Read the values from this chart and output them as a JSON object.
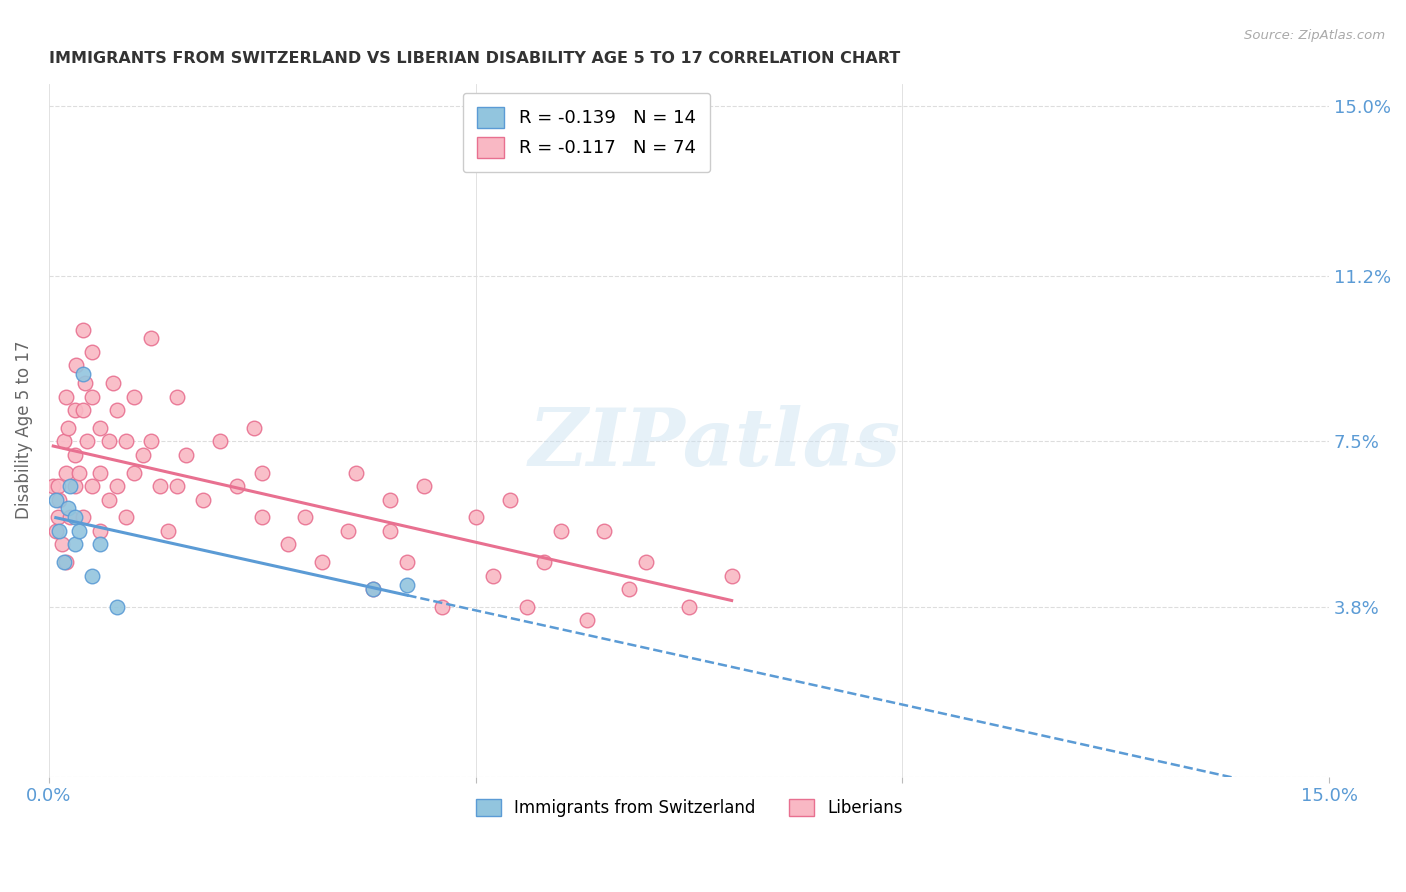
{
  "title": "IMMIGRANTS FROM SWITZERLAND VS LIBERIAN DISABILITY AGE 5 TO 17 CORRELATION CHART",
  "source": "Source: ZipAtlas.com",
  "ylabel": "Disability Age 5 to 17",
  "y_ticks": [
    0.0,
    0.038,
    0.075,
    0.112,
    0.15
  ],
  "y_tick_labels_right": [
    "",
    "3.8%",
    "7.5%",
    "11.2%",
    "15.0%"
  ],
  "xlim": [
    0.0,
    0.15
  ],
  "ylim": [
    0.0,
    0.155
  ],
  "legend_r1": "R = -0.139",
  "legend_n1": "N = 14",
  "legend_r2": "R = -0.117",
  "legend_n2": "N = 74",
  "color_swiss": "#92c5de",
  "color_liberian": "#f9b8c4",
  "color_swiss_line": "#5b9bd5",
  "color_liberian_line": "#e87090",
  "color_axis_labels": "#5b9bd5",
  "watermark": "ZIPatlas",
  "swiss_x": [
    0.0008,
    0.0012,
    0.0018,
    0.0022,
    0.0025,
    0.003,
    0.003,
    0.0035,
    0.004,
    0.005,
    0.006,
    0.008,
    0.038,
    0.042
  ],
  "swiss_y": [
    0.062,
    0.055,
    0.048,
    0.06,
    0.065,
    0.052,
    0.058,
    0.055,
    0.09,
    0.045,
    0.052,
    0.038,
    0.042,
    0.043
  ],
  "liberian_x": [
    0.0005,
    0.0008,
    0.001,
    0.001,
    0.0012,
    0.0015,
    0.0018,
    0.002,
    0.002,
    0.002,
    0.0022,
    0.0025,
    0.003,
    0.003,
    0.003,
    0.0032,
    0.0035,
    0.004,
    0.004,
    0.004,
    0.0042,
    0.0045,
    0.005,
    0.005,
    0.005,
    0.006,
    0.006,
    0.006,
    0.007,
    0.007,
    0.0075,
    0.008,
    0.008,
    0.009,
    0.009,
    0.01,
    0.01,
    0.011,
    0.012,
    0.012,
    0.013,
    0.014,
    0.015,
    0.015,
    0.016,
    0.018,
    0.02,
    0.022,
    0.024,
    0.025,
    0.025,
    0.028,
    0.03,
    0.032,
    0.035,
    0.036,
    0.038,
    0.04,
    0.04,
    0.042,
    0.044,
    0.046,
    0.05,
    0.052,
    0.054,
    0.056,
    0.058,
    0.06,
    0.063,
    0.065,
    0.068,
    0.07,
    0.075,
    0.08
  ],
  "liberian_y": [
    0.065,
    0.055,
    0.065,
    0.058,
    0.062,
    0.052,
    0.075,
    0.068,
    0.085,
    0.048,
    0.078,
    0.058,
    0.082,
    0.072,
    0.065,
    0.092,
    0.068,
    0.1,
    0.082,
    0.058,
    0.088,
    0.075,
    0.095,
    0.085,
    0.065,
    0.078,
    0.068,
    0.055,
    0.075,
    0.062,
    0.088,
    0.082,
    0.065,
    0.075,
    0.058,
    0.085,
    0.068,
    0.072,
    0.098,
    0.075,
    0.065,
    0.055,
    0.085,
    0.065,
    0.072,
    0.062,
    0.075,
    0.065,
    0.078,
    0.058,
    0.068,
    0.052,
    0.058,
    0.048,
    0.055,
    0.068,
    0.042,
    0.062,
    0.055,
    0.048,
    0.065,
    0.038,
    0.058,
    0.045,
    0.062,
    0.038,
    0.048,
    0.055,
    0.035,
    0.055,
    0.042,
    0.048,
    0.038,
    0.045
  ]
}
